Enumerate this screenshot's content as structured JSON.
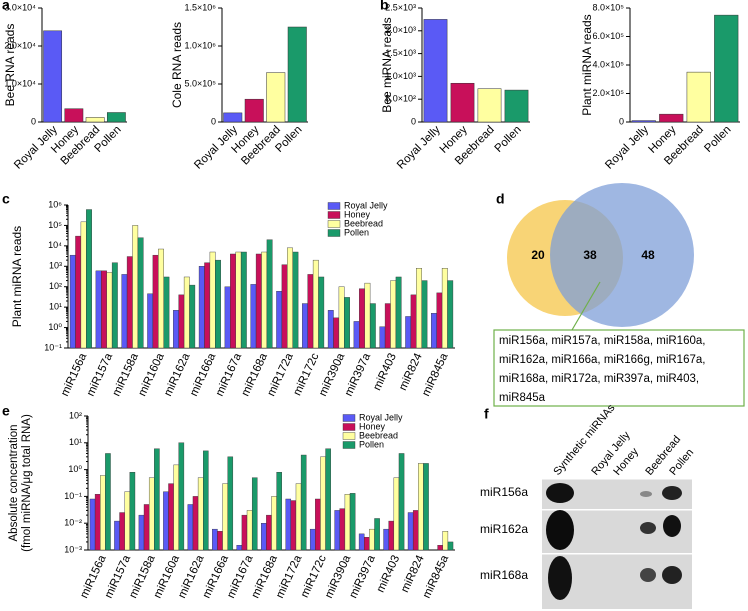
{
  "chart_data": [
    {
      "type": "bar",
      "panel": "a",
      "ylabel": "Bee RNA reads",
      "categories": [
        "Royal Jelly",
        "Honey",
        "Beebread",
        "Pollen"
      ],
      "values": [
        24000,
        3500,
        1200,
        2500
      ],
      "colors": [
        "#5a5af5",
        "#c8105a",
        "#ffffa0",
        "#1a9a6a"
      ],
      "ylim": [
        0,
        30000
      ],
      "yticks": [
        0,
        {
          "value": 10000,
          "label": "1.0×10⁴"
        },
        {
          "value": 20000,
          "label": "2.0×10⁴"
        },
        {
          "value": 30000,
          "label": "3.0×10⁴"
        }
      ]
    },
    {
      "type": "bar",
      "ylabel": "Cole RNA reads",
      "categories": [
        "Royal Jelly",
        "Honey",
        "Beebread",
        "Pollen"
      ],
      "values": [
        120000,
        300000,
        650000,
        1250000
      ],
      "colors": [
        "#5a5af5",
        "#c8105a",
        "#ffffa0",
        "#1a9a6a"
      ],
      "ylim": [
        0,
        1500000
      ],
      "yticks": [
        0,
        {
          "value": 500000,
          "label": "5.0×10⁵"
        },
        {
          "value": 1000000,
          "label": "1.0×10⁶"
        },
        {
          "value": 1500000,
          "label": "1.5×10⁶"
        }
      ]
    },
    {
      "type": "bar",
      "panel": "b",
      "ylabel": "Bee miRNA reads",
      "categories": [
        "Royal Jelly",
        "Honey",
        "Beebread",
        "Pollen"
      ],
      "values": [
        2250,
        850,
        730,
        700
      ],
      "colors": [
        "#5a5af5",
        "#c8105a",
        "#ffffa0",
        "#1a9a6a"
      ],
      "ylim": [
        0,
        2500
      ],
      "yticks": [
        0,
        {
          "value": 500,
          "label": "5.0×10²"
        },
        {
          "value": 1000,
          "label": "1.0×10³"
        },
        {
          "value": 1500,
          "label": "1.5×10³"
        },
        {
          "value": 2000,
          "label": "2.0×10³"
        },
        {
          "value": 2500,
          "label": "2.5×10³"
        }
      ]
    },
    {
      "type": "bar",
      "ylabel": "Plant miRNA reads",
      "categories": [
        "Royal Jelly",
        "Honey",
        "Beebread",
        "Pollen"
      ],
      "values": [
        10000,
        55000,
        350000,
        750000
      ],
      "colors": [
        "#5a5af5",
        "#c8105a",
        "#ffffa0",
        "#1a9a6a"
      ],
      "ylim": [
        0,
        800000
      ],
      "yticks": [
        0,
        {
          "value": 200000,
          "label": "2.0×10⁵"
        },
        {
          "value": 400000,
          "label": "4.0×10⁵"
        },
        {
          "value": 600000,
          "label": "6.0×10⁵"
        },
        {
          "value": 800000,
          "label": "8.0×10⁵"
        }
      ]
    },
    {
      "type": "grouped-bar",
      "panel": "c",
      "ylabel": "Plant miRNA reads",
      "log": true,
      "legend": "upper right",
      "categories": [
        "miR156a",
        "miR157a",
        "miR158a",
        "miR160a",
        "miR162a",
        "miR166a",
        "miR167a",
        "miR168a",
        "miR172a",
        "miR172c",
        "miR390a",
        "miR397a",
        "miR403",
        "miR824",
        "miR845a"
      ],
      "series": [
        {
          "name": "Royal Jelly",
          "color": "#5a5af5",
          "values": [
            3500,
            600,
            400,
            45,
            7,
            1000,
            100,
            130,
            60,
            15,
            7,
            2,
            1.1,
            3.5,
            5
          ]
        },
        {
          "name": "Honey",
          "color": "#c8105a",
          "values": [
            30000,
            600,
            3000,
            3500,
            40,
            1500,
            4000,
            4000,
            1200,
            400,
            3,
            80,
            15,
            40,
            50
          ]
        },
        {
          "name": "Beebread",
          "color": "#ffffa0",
          "values": [
            150000,
            500,
            100000,
            7000,
            300,
            5000,
            5000,
            5000,
            8000,
            2000,
            100,
            150,
            200,
            800,
            800
          ]
        },
        {
          "name": "Pollen",
          "color": "#1a9a6a",
          "values": [
            600000,
            1500,
            25000,
            300,
            120,
            2000,
            5000,
            20000,
            5000,
            300,
            30,
            15,
            300,
            200,
            200
          ]
        }
      ],
      "ylim": [
        0.1,
        1000000
      ],
      "yticks": [
        {
          "value": 0.1,
          "label": "10⁻¹"
        },
        {
          "value": 1,
          "label": "10⁰"
        },
        {
          "value": 10,
          "label": "10¹"
        },
        {
          "value": 100,
          "label": "10²"
        },
        {
          "value": 1000,
          "label": "10³"
        },
        {
          "value": 10000,
          "label": "10⁴"
        },
        {
          "value": 100000,
          "label": "10⁵"
        },
        {
          "value": 1000000,
          "label": "10⁶"
        }
      ]
    },
    {
      "type": "grouped-bar",
      "panel": "e",
      "ylabel": [
        "Absolute concentration",
        "(fmol miRNA/μg total RNA)"
      ],
      "log": true,
      "legend": "upper right",
      "categories": [
        "miR156a",
        "miR157a",
        "miR158a",
        "miR160a",
        "miR162a",
        "miR166a",
        "miR167a",
        "miR168a",
        "miR172a",
        "miR172c",
        "miR390a",
        "miR397a",
        "miR403",
        "miR824",
        "miR845a"
      ],
      "series": [
        {
          "name": "Royal Jelly",
          "color": "#5a5af5",
          "values": [
            0.08,
            0.012,
            0.02,
            0.15,
            0.05,
            0.006,
            0.0015,
            0.01,
            0.08,
            0.006,
            0.03,
            0.004,
            0.006,
            0.025,
            0.001
          ]
        },
        {
          "name": "Honey",
          "color": "#c8105a",
          "values": [
            0.12,
            0.025,
            0.05,
            0.3,
            0.1,
            0.005,
            0.02,
            0.02,
            0.07,
            0.08,
            0.035,
            0.003,
            0.012,
            0.03,
            0.0015
          ]
        },
        {
          "name": "Beebread",
          "color": "#ffffa0",
          "values": [
            0.6,
            0.15,
            0.5,
            1.5,
            0.5,
            0.3,
            0.03,
            0.1,
            0.3,
            3,
            0.12,
            0.006,
            0.5,
            1.7,
            0.005
          ]
        },
        {
          "name": "Pollen",
          "color": "#1a9a6a",
          "values": [
            4,
            0.8,
            6,
            10,
            5,
            3,
            0.5,
            0.8,
            3.5,
            6,
            0.13,
            0.015,
            4,
            1.7,
            0.002
          ]
        }
      ],
      "ylim": [
        0.001,
        100
      ],
      "yticks": [
        {
          "value": 0.001,
          "label": "10⁻³"
        },
        {
          "value": 0.01,
          "label": "10⁻²"
        },
        {
          "value": 0.1,
          "label": "10⁻¹"
        },
        {
          "value": 1,
          "label": "10⁰"
        },
        {
          "value": 10,
          "label": "10¹"
        },
        {
          "value": 100,
          "label": "10²"
        }
      ]
    }
  ],
  "venn": {
    "panel": "d",
    "counts": [
      20,
      38,
      48
    ],
    "callout": [
      "miR156a, miR157a, miR158a, miR160a,",
      "miR162a, miR166a, miR166g, miR167a,",
      "miR168a, miR172a, miR397a, miR403,",
      "miR845a"
    ]
  },
  "blot": {
    "panel": "f",
    "columns": [
      "Synthetic miRNAs",
      "Royal Jelly",
      "Honey",
      "Beebread",
      "Pollen"
    ],
    "rows": [
      "miR156a",
      "miR162a",
      "miR168a"
    ]
  }
}
